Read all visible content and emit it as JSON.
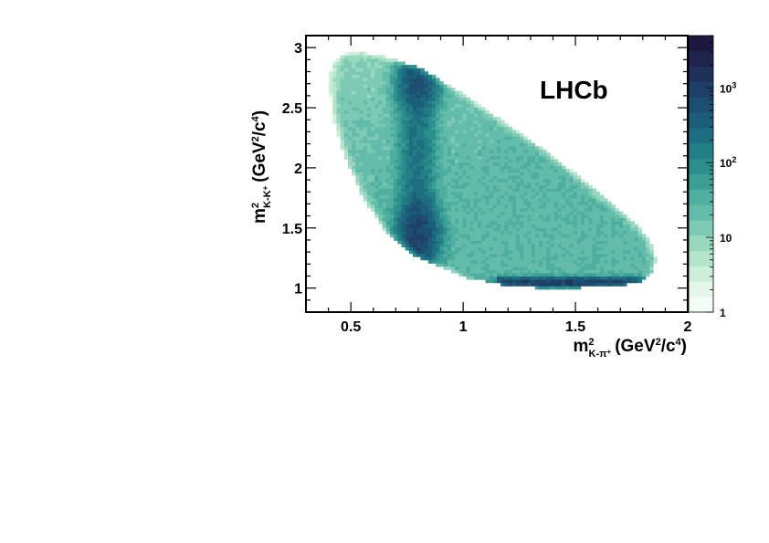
{
  "chart_data": {
    "type": "heatmap",
    "experiment_label": "LHCb",
    "xaxis": {
      "label": {
        "base": "m",
        "sup": "2",
        "sub": "K",
        "sub2": "-",
        "sub3": "π",
        "sub4": "+",
        "units_open": "(GeV",
        "units_sup": "2",
        "units_mid": "/c",
        "units_sup2": "4",
        "units_close": ")"
      },
      "range": [
        0.3,
        2.0
      ],
      "ticks": [
        {
          "value": 0.5,
          "label": "0.5"
        },
        {
          "value": 1.0,
          "label": "1"
        },
        {
          "value": 1.5,
          "label": "1.5"
        },
        {
          "value": 2.0,
          "label": "2"
        }
      ]
    },
    "yaxis": {
      "label": {
        "base": "m",
        "sup": "2",
        "sub": "K",
        "sub2": "-",
        "sub3": "K",
        "sub4": "+",
        "units_open": "(GeV",
        "units_sup": "2",
        "units_mid": "/c",
        "units_sup2": "4",
        "units_close": ")"
      },
      "range": [
        0.8,
        3.1
      ],
      "ticks": [
        {
          "value": 1.0,
          "label": "1"
        },
        {
          "value": 1.5,
          "label": "1.5"
        },
        {
          "value": 2.0,
          "label": "2"
        },
        {
          "value": 2.5,
          "label": "2.5"
        },
        {
          "value": 3.0,
          "label": "3"
        }
      ]
    },
    "zaxis": {
      "scale": "log",
      "range": [
        1,
        5000
      ],
      "ticks": [
        {
          "value": 1,
          "label": "1"
        },
        {
          "value": 10,
          "label": "10"
        },
        {
          "value": 100,
          "base": "10",
          "exp": "2"
        },
        {
          "value": 1000,
          "base": "10",
          "exp": "3"
        }
      ],
      "palette": [
        "#f4fcf6",
        "#e4f7ea",
        "#cdeedb",
        "#b4e4cc",
        "#98d8bf",
        "#7ccab4",
        "#63bcaa",
        "#4eae9f",
        "#3c9f95",
        "#2d8f8c",
        "#227f86",
        "#1c6e80",
        "#1b5e79",
        "#1c4e70",
        "#1e3f66",
        "#1f315b",
        "#1f234d",
        "#1d163d"
      ]
    },
    "distribution": {
      "boundary_points": [
        [
          0.4,
          2.75
        ],
        [
          0.42,
          2.87
        ],
        [
          0.46,
          2.95
        ],
        [
          0.55,
          2.96
        ],
        [
          0.65,
          2.93
        ],
        [
          0.8,
          2.84
        ],
        [
          1.0,
          2.62
        ],
        [
          1.2,
          2.36
        ],
        [
          1.4,
          2.1
        ],
        [
          1.6,
          1.8
        ],
        [
          1.75,
          1.57
        ],
        [
          1.83,
          1.4
        ],
        [
          1.86,
          1.25
        ],
        [
          1.85,
          1.13
        ],
        [
          1.8,
          1.06
        ],
        [
          1.7,
          1.02
        ],
        [
          1.5,
          1.0
        ],
        [
          1.35,
          1.0
        ],
        [
          1.2,
          1.02
        ],
        [
          1.0,
          1.09
        ],
        [
          0.8,
          1.25
        ],
        [
          0.65,
          1.47
        ],
        [
          0.55,
          1.77
        ],
        [
          0.47,
          2.1
        ],
        [
          0.42,
          2.42
        ]
      ],
      "background_level": 25,
      "resonance_bands": [
        {
          "name": "K*(892) band",
          "x_center": 0.795,
          "x_width": 0.045,
          "y_range": [
            1.2,
            2.85
          ],
          "peak": 180
        },
        {
          "name": "phi(1020) band",
          "y_center": 1.04,
          "y_width": 0.025,
          "x_range": [
            1.15,
            1.85
          ],
          "peak": 1200
        },
        {
          "name": "upper overlap",
          "x_center": 0.8,
          "y_center": 2.7,
          "x_width": 0.05,
          "y_width": 0.12,
          "peak": 400
        },
        {
          "name": "lower overlap",
          "x_center": 0.8,
          "y_center": 1.45,
          "x_width": 0.05,
          "y_width": 0.15,
          "peak": 700
        }
      ]
    }
  }
}
